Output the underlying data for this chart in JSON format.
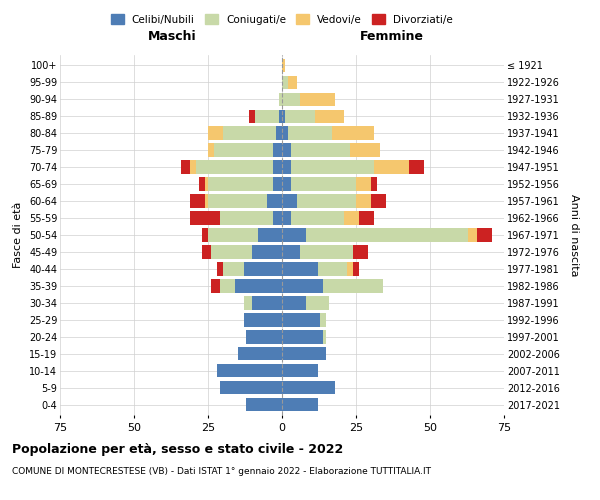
{
  "age_groups": [
    "0-4",
    "5-9",
    "10-14",
    "15-19",
    "20-24",
    "25-29",
    "30-34",
    "35-39",
    "40-44",
    "45-49",
    "50-54",
    "55-59",
    "60-64",
    "65-69",
    "70-74",
    "75-79",
    "80-84",
    "85-89",
    "90-94",
    "95-99",
    "100+"
  ],
  "birth_years": [
    "2017-2021",
    "2012-2016",
    "2007-2011",
    "2002-2006",
    "1997-2001",
    "1992-1996",
    "1987-1991",
    "1982-1986",
    "1977-1981",
    "1972-1976",
    "1967-1971",
    "1962-1966",
    "1957-1961",
    "1952-1956",
    "1947-1951",
    "1942-1946",
    "1937-1941",
    "1932-1936",
    "1927-1931",
    "1922-1926",
    "≤ 1921"
  ],
  "colors": {
    "celibi": "#4e7db5",
    "coniugati": "#c8d9a8",
    "vedovi": "#f5c76e",
    "divorziati": "#cc2222"
  },
  "males": {
    "celibi": [
      12,
      21,
      22,
      15,
      12,
      13,
      10,
      16,
      13,
      10,
      8,
      3,
      5,
      3,
      3,
      3,
      2,
      1,
      0,
      0,
      0
    ],
    "coniugati": [
      0,
      0,
      0,
      0,
      0,
      0,
      3,
      5,
      7,
      14,
      17,
      18,
      20,
      22,
      26,
      20,
      18,
      8,
      1,
      0,
      0
    ],
    "vedovi": [
      0,
      0,
      0,
      0,
      0,
      0,
      0,
      0,
      0,
      0,
      0,
      0,
      1,
      1,
      2,
      2,
      5,
      0,
      0,
      0,
      0
    ],
    "divorziati": [
      0,
      0,
      0,
      0,
      0,
      0,
      0,
      3,
      2,
      3,
      2,
      10,
      5,
      2,
      3,
      0,
      0,
      2,
      0,
      0,
      0
    ]
  },
  "females": {
    "celibi": [
      12,
      18,
      12,
      15,
      14,
      13,
      8,
      14,
      12,
      6,
      8,
      3,
      5,
      3,
      3,
      3,
      2,
      1,
      0,
      0,
      0
    ],
    "coniugati": [
      0,
      0,
      0,
      0,
      1,
      2,
      8,
      20,
      10,
      18,
      55,
      18,
      20,
      22,
      28,
      20,
      15,
      10,
      6,
      2,
      0
    ],
    "vedovi": [
      0,
      0,
      0,
      0,
      0,
      0,
      0,
      0,
      2,
      0,
      3,
      5,
      5,
      5,
      12,
      10,
      14,
      10,
      12,
      3,
      1
    ],
    "divorziati": [
      0,
      0,
      0,
      0,
      0,
      0,
      0,
      0,
      2,
      5,
      5,
      5,
      5,
      2,
      5,
      0,
      0,
      0,
      0,
      0,
      0
    ]
  },
  "xlim": 75,
  "title_main": "Popolazione per età, sesso e stato civile - 2022",
  "title_sub": "COMUNE DI MONTECRESTESE (VB) - Dati ISTAT 1° gennaio 2022 - Elaborazione TUTTITALIA.IT",
  "xlabel_left": "Maschi",
  "xlabel_right": "Femmine",
  "ylabel_left": "Fasce di età",
  "ylabel_right": "Anni di nascita",
  "legend_labels": [
    "Celibi/Nubili",
    "Coniugati/e",
    "Vedovi/e",
    "Divorziati/e"
  ],
  "bg_color": "#ffffff",
  "grid_color": "#d0d0d0"
}
